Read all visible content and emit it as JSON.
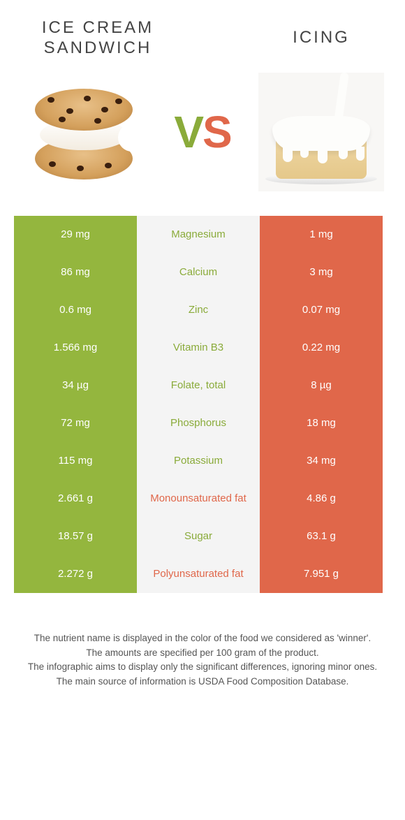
{
  "header": {
    "left_title": "ICE CREAM SANDWICH",
    "right_title": "ICING",
    "vs_v": "V",
    "vs_s": "S"
  },
  "colors": {
    "green": "#94b63e",
    "orange": "#e0674a",
    "green_text": "#8aab3a",
    "orange_text": "#e0674a",
    "mid_bg": "#f4f4f4"
  },
  "rows": [
    {
      "nutrient": "Magnesium",
      "left": "29 mg",
      "right": "1 mg",
      "winner": "left"
    },
    {
      "nutrient": "Calcium",
      "left": "86 mg",
      "right": "3 mg",
      "winner": "left"
    },
    {
      "nutrient": "Zinc",
      "left": "0.6 mg",
      "right": "0.07 mg",
      "winner": "left"
    },
    {
      "nutrient": "Vitamin B3",
      "left": "1.566 mg",
      "right": "0.22 mg",
      "winner": "left"
    },
    {
      "nutrient": "Folate, total",
      "left": "34 µg",
      "right": "8 µg",
      "winner": "left"
    },
    {
      "nutrient": "Phosphorus",
      "left": "72 mg",
      "right": "18 mg",
      "winner": "left"
    },
    {
      "nutrient": "Potassium",
      "left": "115 mg",
      "right": "34 mg",
      "winner": "left"
    },
    {
      "nutrient": "Monounsaturated fat",
      "left": "2.661 g",
      "right": "4.86 g",
      "winner": "right"
    },
    {
      "nutrient": "Sugar",
      "left": "18.57 g",
      "right": "63.1 g",
      "winner": "left"
    },
    {
      "nutrient": "Polyunsaturated fat",
      "left": "2.272 g",
      "right": "7.951 g",
      "winner": "right"
    }
  ],
  "footnotes": {
    "line1": "The nutrient name is displayed in the color of the food we considered as 'winner'.",
    "line2": "The amounts are specified per 100 gram of the product.",
    "line3": "The infographic aims to display only the significant differences, ignoring minor ones.",
    "line4": "The main source of information is USDA Food Composition Database."
  }
}
